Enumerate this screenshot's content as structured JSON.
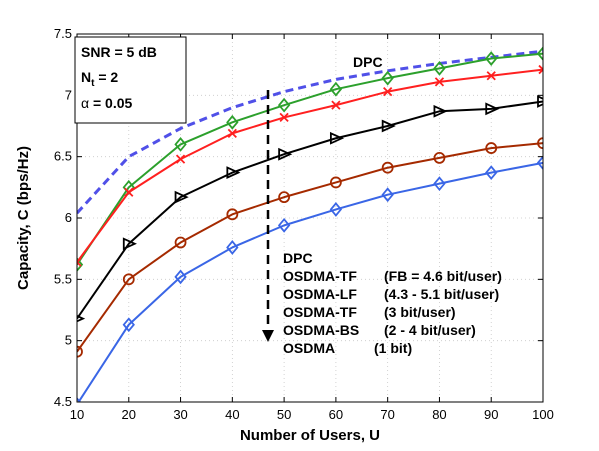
{
  "chart_data": {
    "type": "line",
    "xlabel": "Number of Users, U",
    "ylabel": "Capacity, C (bps/Hz)",
    "xlim": [
      10,
      100
    ],
    "ylim": [
      4.5,
      7.5
    ],
    "x_ticks": [
      "10",
      "20",
      "30",
      "40",
      "50",
      "60",
      "70",
      "80",
      "90",
      "100"
    ],
    "y_ticks": [
      "4.5",
      "5",
      "5.5",
      "6",
      "6.5",
      "7",
      "7.5"
    ],
    "grid": true,
    "x": [
      10,
      20,
      30,
      40,
      50,
      60,
      70,
      80,
      90,
      100
    ],
    "params_box": [
      "SNR = 5 dB",
      "N",
      "t",
      " = 2",
      "α",
      " = 0.05"
    ],
    "curve_label": "DPC",
    "arrow_direction": "down",
    "legend": {
      "placement": "center-right",
      "entries": [
        {
          "name": "DPC",
          "detail": ""
        },
        {
          "name": "OSDMA-TF",
          "detail": "(FB = 4.6 bit/user)"
        },
        {
          "name": "OSDMA-LF",
          "detail": "(4.3 - 5.1 bit/user)"
        },
        {
          "name": "OSDMA-TF",
          "detail": "(3 bit/user)"
        },
        {
          "name": "OSDMA-BS",
          "detail": "(2 - 4 bit/user)"
        },
        {
          "name": "OSDMA",
          "detail": "(1 bit)"
        }
      ]
    },
    "series": [
      {
        "name": "DPC",
        "color": "#5050e8",
        "marker": "none",
        "dash": true,
        "values": [
          6.04,
          6.5,
          6.73,
          6.9,
          7.03,
          7.13,
          7.2,
          7.26,
          7.31,
          7.36
        ]
      },
      {
        "name": "OSDMA-TF (FB = 4.6 bit/user)",
        "color": "#2ca02c",
        "marker": "diamond",
        "dash": false,
        "values": [
          5.62,
          6.25,
          6.6,
          6.78,
          6.92,
          7.05,
          7.14,
          7.22,
          7.3,
          7.34
        ]
      },
      {
        "name": "OSDMA-LF (4.3 - 5.1 bit/user)",
        "color": "#ff2020",
        "marker": "x",
        "dash": false,
        "values": [
          5.64,
          6.21,
          6.48,
          6.69,
          6.82,
          6.92,
          7.03,
          7.11,
          7.16,
          7.21
        ]
      },
      {
        "name": "OSDMA-TF (3 bit/user)",
        "color": "#000000",
        "marker": "triangle-right",
        "dash": false,
        "values": [
          5.18,
          5.79,
          6.17,
          6.37,
          6.52,
          6.65,
          6.75,
          6.87,
          6.89,
          6.95
        ]
      },
      {
        "name": "OSDMA-BS (2 - 4 bit/user)",
        "color": "#a52a00",
        "marker": "circle",
        "dash": false,
        "values": [
          4.91,
          5.5,
          5.8,
          6.03,
          6.17,
          6.29,
          6.41,
          6.49,
          6.57,
          6.61
        ]
      },
      {
        "name": "OSDMA (1 bit)",
        "color": "#3a66e6",
        "marker": "diamond",
        "dash": false,
        "values": [
          4.48,
          5.13,
          5.52,
          5.76,
          5.94,
          6.07,
          6.19,
          6.28,
          6.37,
          6.45
        ]
      }
    ]
  }
}
